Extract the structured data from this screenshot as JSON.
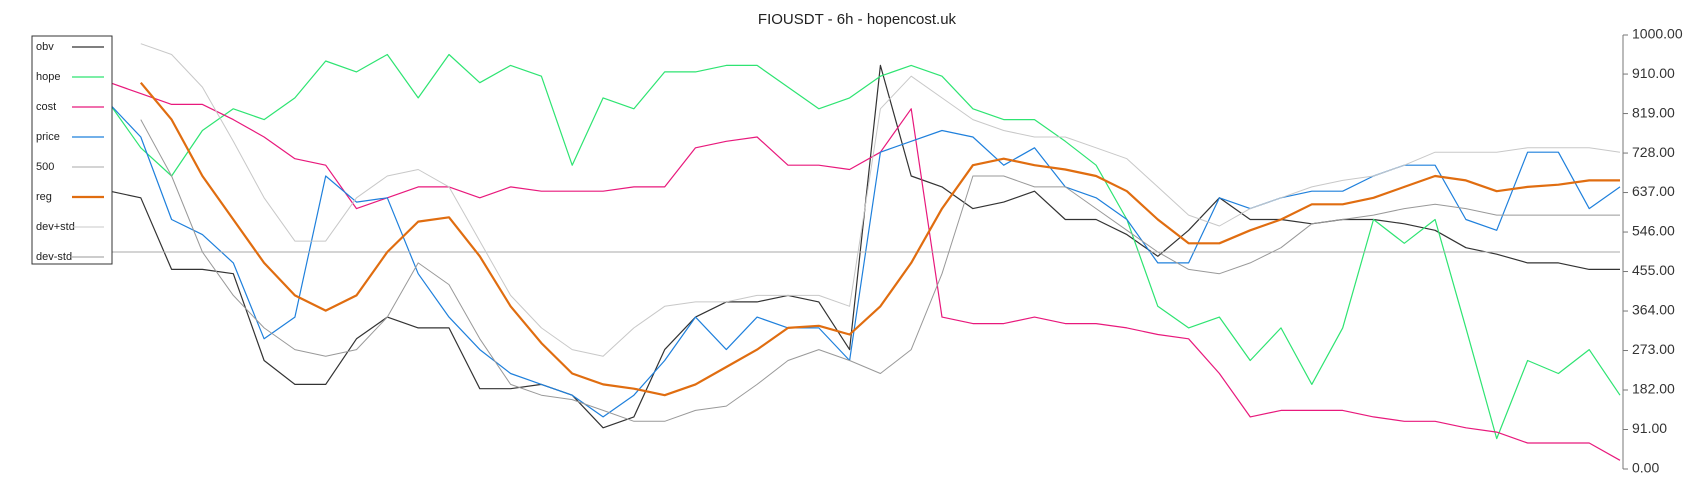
{
  "chart_data": {
    "type": "line",
    "title": "FIOUSDT - 6h - hopencost.uk",
    "ylim": [
      0,
      1000
    ],
    "yticks": [
      {
        "value": 0,
        "label": "0.00"
      },
      {
        "value": 91,
        "label": "91.00"
      },
      {
        "value": 182,
        "label": "182.00"
      },
      {
        "value": 273,
        "label": "273.00"
      },
      {
        "value": 364,
        "label": "364.00"
      },
      {
        "value": 455,
        "label": "455.00"
      },
      {
        "value": 546,
        "label": "546.00"
      },
      {
        "value": 637,
        "label": "637.00"
      },
      {
        "value": 728,
        "label": "728.00"
      },
      {
        "value": 819,
        "label": "819.00"
      },
      {
        "value": 910,
        "label": "910.00"
      },
      {
        "value": 1000,
        "label": "1000.00"
      }
    ],
    "legend": "upper left",
    "series": [
      {
        "name": "obv",
        "color": "#333333",
        "width": 1.2,
        "values": [
          640,
          625,
          460,
          460,
          450,
          250,
          195,
          195,
          300,
          350,
          325,
          325,
          185,
          185,
          195,
          170,
          95,
          120,
          275,
          350,
          385,
          385,
          400,
          385,
          275,
          930,
          675,
          650,
          600,
          615,
          640,
          575,
          575,
          540,
          490,
          550,
          625,
          575,
          575,
          565,
          575,
          575,
          565,
          550,
          510,
          495,
          475,
          475,
          460,
          460
        ]
      },
      {
        "name": "hope",
        "color": "#2ee472",
        "width": 1.2,
        "values": [
          840,
          740,
          675,
          780,
          830,
          805,
          855,
          940,
          915,
          955,
          855,
          955,
          890,
          930,
          905,
          700,
          855,
          830,
          915,
          915,
          930,
          930,
          880,
          830,
          855,
          905,
          930,
          905,
          830,
          805,
          805,
          755,
          700,
          575,
          375,
          325,
          350,
          250,
          325,
          195,
          325,
          575,
          520,
          575,
          325,
          70,
          250,
          220,
          275,
          170
        ]
      },
      {
        "name": "cost",
        "color": "#e8197c",
        "width": 1.2,
        "values": [
          890,
          865,
          840,
          840,
          805,
          765,
          715,
          700,
          600,
          625,
          650,
          650,
          625,
          650,
          640,
          640,
          640,
          650,
          650,
          740,
          755,
          765,
          700,
          700,
          690,
          730,
          830,
          350,
          335,
          335,
          350,
          335,
          335,
          325,
          310,
          300,
          220,
          120,
          135,
          135,
          135,
          120,
          110,
          110,
          95,
          85,
          60,
          60,
          60,
          20
        ]
      },
      {
        "name": "price",
        "color": "#1f80dc",
        "width": 1.2,
        "values": [
          840,
          765,
          575,
          540,
          475,
          300,
          350,
          675,
          615,
          625,
          450,
          350,
          275,
          220,
          195,
          170,
          120,
          170,
          250,
          350,
          275,
          350,
          325,
          325,
          250,
          730,
          755,
          780,
          765,
          700,
          740,
          650,
          625,
          575,
          475,
          475,
          625,
          600,
          625,
          640,
          640,
          675,
          700,
          700,
          575,
          550,
          730,
          730,
          600,
          650
        ]
      },
      {
        "name": "500",
        "color": "#aaaaaa",
        "width": 1,
        "values": [
          500,
          500,
          500,
          500,
          500,
          500,
          500,
          500,
          500,
          500,
          500,
          500,
          500,
          500,
          500,
          500,
          500,
          500,
          500,
          500,
          500,
          500,
          500,
          500,
          500,
          500,
          500,
          500,
          500,
          500,
          500,
          500,
          500,
          500,
          500,
          500,
          500,
          500,
          500,
          500,
          500,
          500,
          500,
          500,
          500,
          500,
          500,
          500,
          500,
          500
        ]
      },
      {
        "name": "reg",
        "color": "#e06d10",
        "width": 2.2,
        "values": [
          null,
          890,
          805,
          675,
          575,
          475,
          400,
          365,
          400,
          500,
          570,
          580,
          490,
          375,
          290,
          220,
          195,
          185,
          170,
          195,
          235,
          275,
          325,
          330,
          310,
          375,
          475,
          600,
          700,
          715,
          700,
          690,
          675,
          640,
          575,
          520,
          520,
          550,
          575,
          610,
          610,
          625,
          650,
          675,
          665,
          640,
          650,
          655,
          665,
          665
        ]
      },
      {
        "name": "dev+std",
        "color": "#c8c8c8",
        "width": 1,
        "values": [
          null,
          980,
          955,
          880,
          755,
          625,
          525,
          525,
          625,
          675,
          690,
          650,
          525,
          400,
          325,
          275,
          260,
          325,
          375,
          385,
          385,
          400,
          400,
          400,
          375,
          830,
          905,
          855,
          805,
          780,
          765,
          765,
          740,
          715,
          650,
          585,
          560,
          600,
          625,
          650,
          665,
          675,
          700,
          730,
          730,
          730,
          740,
          740,
          740,
          730
        ]
      },
      {
        "name": "dev-std",
        "color": "#999999",
        "width": 1,
        "values": [
          null,
          805,
          675,
          500,
          400,
          325,
          275,
          260,
          275,
          350,
          475,
          425,
          300,
          195,
          170,
          160,
          135,
          110,
          110,
          135,
          145,
          195,
          250,
          275,
          250,
          220,
          275,
          450,
          675,
          675,
          650,
          650,
          600,
          550,
          500,
          460,
          450,
          475,
          510,
          565,
          575,
          585,
          600,
          610,
          600,
          585,
          585,
          585,
          585,
          585
        ]
      }
    ]
  }
}
